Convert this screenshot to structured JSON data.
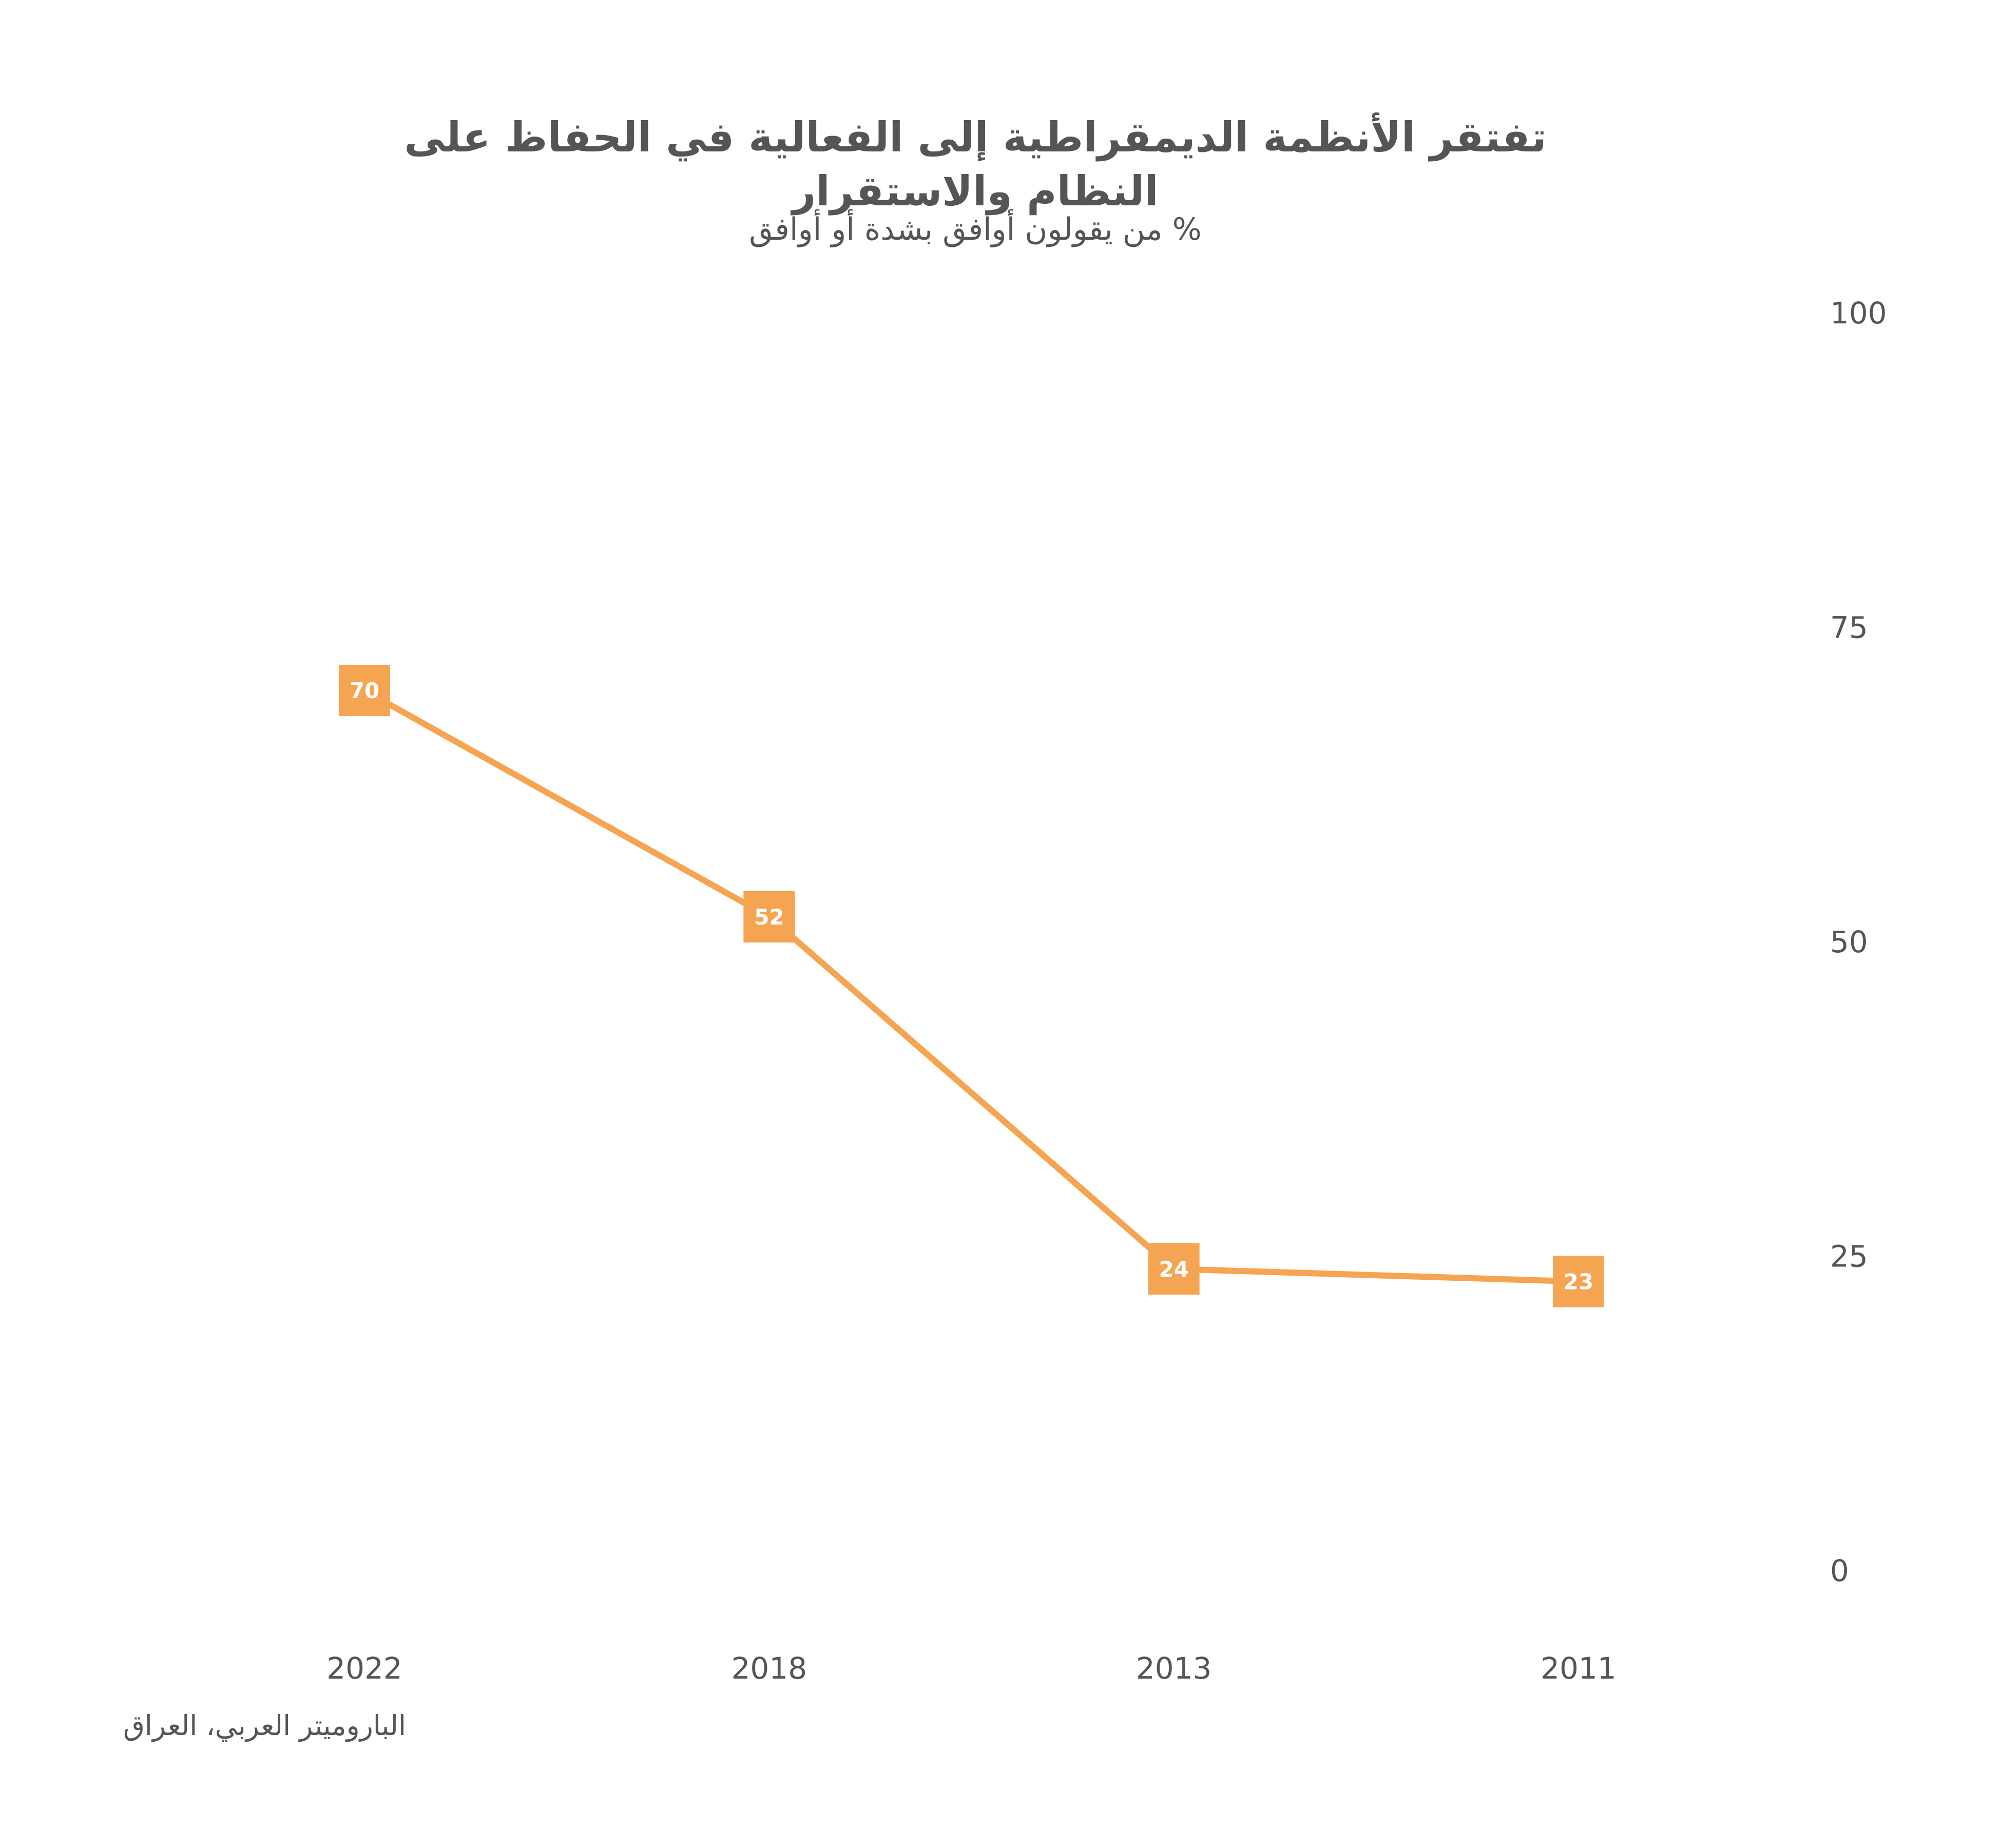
{
  "chart_data": {
    "type": "line",
    "title": "تفتقر الأنظمة الديمقراطية إلى الفعالية في الحفاظ على النظام والاستقرار",
    "subtitle": "% من يقولون أوافق بشدة أو أوافق",
    "source": "الباروميتر العربي، العراق",
    "categories": [
      "2022",
      "2018",
      "2013",
      "2011"
    ],
    "series": [
      {
        "values": [
          70,
          52,
          24,
          23
        ]
      }
    ],
    "ylim": [
      0,
      100
    ],
    "yticks": [
      0,
      25,
      50,
      75,
      100
    ],
    "y_axis_position": "right",
    "grid": false,
    "data_labels": true,
    "color": "#F5A552"
  }
}
